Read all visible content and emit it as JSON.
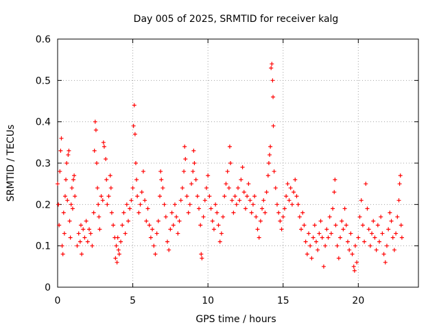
{
  "colors": {
    "points": "#ff0000",
    "background": "#ffffff"
  },
  "chart_data": {
    "type": "scatter",
    "title": "Day 005 of 2025, SRMTID for receiver kalg",
    "xlabel": "GPS time / hours",
    "ylabel": "SRMTID / TECUs",
    "xlim": [
      0,
      24
    ],
    "ylim": [
      0,
      0.6
    ],
    "xticks": [
      0,
      5,
      10,
      15,
      20
    ],
    "xtick_labels": [
      "0",
      "5",
      "10",
      "15",
      "20"
    ],
    "yticks": [
      0,
      0.1,
      0.2,
      0.3,
      0.4,
      0.5,
      0.6
    ],
    "ytick_labels": [
      "0",
      "0.1",
      "0.2",
      "0.3",
      "0.4",
      "0.5",
      "0.6"
    ],
    "grid": true,
    "marker": "plus",
    "series": [
      {
        "name": "SRMTID",
        "points": [
          [
            0.0,
            0.25
          ],
          [
            0.05,
            0.2
          ],
          [
            0.1,
            0.15
          ],
          [
            0.15,
            0.28
          ],
          [
            0.2,
            0.33
          ],
          [
            0.25,
            0.36
          ],
          [
            0.3,
            0.1
          ],
          [
            0.35,
            0.08
          ],
          [
            0.4,
            0.18
          ],
          [
            0.45,
            0.13
          ],
          [
            0.5,
            0.22
          ],
          [
            0.55,
            0.26
          ],
          [
            0.6,
            0.3
          ],
          [
            0.65,
            0.21
          ],
          [
            0.7,
            0.32
          ],
          [
            0.75,
            0.33
          ],
          [
            0.8,
            0.16
          ],
          [
            0.85,
            0.12
          ],
          [
            0.9,
            0.2
          ],
          [
            0.95,
            0.24
          ],
          [
            1.0,
            0.19
          ],
          [
            1.05,
            0.26
          ],
          [
            1.1,
            0.27
          ],
          [
            1.15,
            0.22
          ],
          [
            1.3,
            0.1
          ],
          [
            1.4,
            0.13
          ],
          [
            1.5,
            0.11
          ],
          [
            1.55,
            0.15
          ],
          [
            1.6,
            0.08
          ],
          [
            1.7,
            0.14
          ],
          [
            1.8,
            0.12
          ],
          [
            1.9,
            0.16
          ],
          [
            2.0,
            0.11
          ],
          [
            2.1,
            0.14
          ],
          [
            2.2,
            0.13
          ],
          [
            2.3,
            0.1
          ],
          [
            2.4,
            0.18
          ],
          [
            2.45,
            0.33
          ],
          [
            2.5,
            0.4
          ],
          [
            2.55,
            0.38
          ],
          [
            2.6,
            0.3
          ],
          [
            2.65,
            0.24
          ],
          [
            2.7,
            0.2
          ],
          [
            2.75,
            0.17
          ],
          [
            2.8,
            0.14
          ],
          [
            2.9,
            0.22
          ],
          [
            3.0,
            0.21
          ],
          [
            3.05,
            0.35
          ],
          [
            3.1,
            0.34
          ],
          [
            3.2,
            0.31
          ],
          [
            3.25,
            0.26
          ],
          [
            3.3,
            0.2
          ],
          [
            3.4,
            0.22
          ],
          [
            3.5,
            0.27
          ],
          [
            3.55,
            0.24
          ],
          [
            3.6,
            0.18
          ],
          [
            3.7,
            0.15
          ],
          [
            3.8,
            0.12
          ],
          [
            3.85,
            0.07
          ],
          [
            3.9,
            0.1
          ],
          [
            3.95,
            0.06
          ],
          [
            4.0,
            0.12
          ],
          [
            4.05,
            0.09
          ],
          [
            4.1,
            0.08
          ],
          [
            4.2,
            0.11
          ],
          [
            4.3,
            0.15
          ],
          [
            4.4,
            0.18
          ],
          [
            4.5,
            0.13
          ],
          [
            4.6,
            0.2
          ],
          [
            4.7,
            0.16
          ],
          [
            4.8,
            0.19
          ],
          [
            4.9,
            0.21
          ],
          [
            5.0,
            0.24
          ],
          [
            5.05,
            0.39
          ],
          [
            5.1,
            0.44
          ],
          [
            5.15,
            0.37
          ],
          [
            5.2,
            0.3
          ],
          [
            5.25,
            0.26
          ],
          [
            5.3,
            0.22
          ],
          [
            5.4,
            0.18
          ],
          [
            5.5,
            0.2
          ],
          [
            5.6,
            0.23
          ],
          [
            5.7,
            0.28
          ],
          [
            5.8,
            0.21
          ],
          [
            5.9,
            0.16
          ],
          [
            6.0,
            0.19
          ],
          [
            6.1,
            0.15
          ],
          [
            6.2,
            0.12
          ],
          [
            6.3,
            0.14
          ],
          [
            6.4,
            0.1
          ],
          [
            6.5,
            0.08
          ],
          [
            6.6,
            0.13
          ],
          [
            6.7,
            0.16
          ],
          [
            6.8,
            0.22
          ],
          [
            6.85,
            0.28
          ],
          [
            6.9,
            0.26
          ],
          [
            7.0,
            0.24
          ],
          [
            7.1,
            0.2
          ],
          [
            7.2,
            0.17
          ],
          [
            7.3,
            0.11
          ],
          [
            7.4,
            0.09
          ],
          [
            7.5,
            0.14
          ],
          [
            7.6,
            0.18
          ],
          [
            7.7,
            0.15
          ],
          [
            7.8,
            0.2
          ],
          [
            7.9,
            0.17
          ],
          [
            8.0,
            0.13
          ],
          [
            8.1,
            0.16
          ],
          [
            8.2,
            0.21
          ],
          [
            8.3,
            0.24
          ],
          [
            8.4,
            0.28
          ],
          [
            8.45,
            0.34
          ],
          [
            8.5,
            0.31
          ],
          [
            8.6,
            0.22
          ],
          [
            8.7,
            0.18
          ],
          [
            8.8,
            0.2
          ],
          [
            8.9,
            0.25
          ],
          [
            9.0,
            0.28
          ],
          [
            9.05,
            0.33
          ],
          [
            9.1,
            0.3
          ],
          [
            9.2,
            0.26
          ],
          [
            9.3,
            0.22
          ],
          [
            9.4,
            0.19
          ],
          [
            9.5,
            0.15
          ],
          [
            9.55,
            0.08
          ],
          [
            9.6,
            0.07
          ],
          [
            9.7,
            0.17
          ],
          [
            9.8,
            0.21
          ],
          [
            9.9,
            0.24
          ],
          [
            10.0,
            0.27
          ],
          [
            10.1,
            0.22
          ],
          [
            10.2,
            0.19
          ],
          [
            10.3,
            0.16
          ],
          [
            10.4,
            0.14
          ],
          [
            10.5,
            0.2
          ],
          [
            10.6,
            0.18
          ],
          [
            10.7,
            0.15
          ],
          [
            10.8,
            0.11
          ],
          [
            10.9,
            0.13
          ],
          [
            11.0,
            0.17
          ],
          [
            11.1,
            0.22
          ],
          [
            11.2,
            0.25
          ],
          [
            11.3,
            0.28
          ],
          [
            11.4,
            0.24
          ],
          [
            11.45,
            0.34
          ],
          [
            11.5,
            0.3
          ],
          [
            11.6,
            0.21
          ],
          [
            11.7,
            0.18
          ],
          [
            11.8,
            0.22
          ],
          [
            11.9,
            0.2
          ],
          [
            12.0,
            0.24
          ],
          [
            12.1,
            0.21
          ],
          [
            12.2,
            0.26
          ],
          [
            12.3,
            0.29
          ],
          [
            12.4,
            0.23
          ],
          [
            12.5,
            0.19
          ],
          [
            12.6,
            0.22
          ],
          [
            12.7,
            0.25
          ],
          [
            12.8,
            0.21
          ],
          [
            12.9,
            0.18
          ],
          [
            13.0,
            0.2
          ],
          [
            13.1,
            0.22
          ],
          [
            13.2,
            0.17
          ],
          [
            13.3,
            0.14
          ],
          [
            13.4,
            0.12
          ],
          [
            13.5,
            0.16
          ],
          [
            13.6,
            0.19
          ],
          [
            13.7,
            0.21
          ],
          [
            13.8,
            0.18
          ],
          [
            13.9,
            0.23
          ],
          [
            14.0,
            0.27
          ],
          [
            14.05,
            0.3
          ],
          [
            14.1,
            0.32
          ],
          [
            14.15,
            0.34
          ],
          [
            14.2,
            0.53
          ],
          [
            14.25,
            0.54
          ],
          [
            14.3,
            0.5
          ],
          [
            14.33,
            0.46
          ],
          [
            14.35,
            0.39
          ],
          [
            14.4,
            0.28
          ],
          [
            14.5,
            0.24
          ],
          [
            14.6,
            0.2
          ],
          [
            14.7,
            0.18
          ],
          [
            14.8,
            0.16
          ],
          [
            14.9,
            0.14
          ],
          [
            15.0,
            0.17
          ],
          [
            15.1,
            0.19
          ],
          [
            15.2,
            0.22
          ],
          [
            15.3,
            0.25
          ],
          [
            15.4,
            0.21
          ],
          [
            15.5,
            0.24
          ],
          [
            15.6,
            0.2
          ],
          [
            15.7,
            0.23
          ],
          [
            15.8,
            0.26
          ],
          [
            15.9,
            0.22
          ],
          [
            16.0,
            0.2
          ],
          [
            16.1,
            0.17
          ],
          [
            16.2,
            0.14
          ],
          [
            16.3,
            0.18
          ],
          [
            16.4,
            0.15
          ],
          [
            16.5,
            0.11
          ],
          [
            16.6,
            0.08
          ],
          [
            16.7,
            0.13
          ],
          [
            16.8,
            0.1
          ],
          [
            16.9,
            0.07
          ],
          [
            17.0,
            0.12
          ],
          [
            17.1,
            0.15
          ],
          [
            17.2,
            0.11
          ],
          [
            17.3,
            0.09
          ],
          [
            17.4,
            0.13
          ],
          [
            17.5,
            0.16
          ],
          [
            17.6,
            0.12
          ],
          [
            17.7,
            0.05
          ],
          [
            17.8,
            0.1
          ],
          [
            17.9,
            0.14
          ],
          [
            18.0,
            0.12
          ],
          [
            18.1,
            0.17
          ],
          [
            18.2,
            0.13
          ],
          [
            18.3,
            0.19
          ],
          [
            18.4,
            0.23
          ],
          [
            18.45,
            0.26
          ],
          [
            18.5,
            0.15
          ],
          [
            18.6,
            0.1
          ],
          [
            18.7,
            0.07
          ],
          [
            18.8,
            0.12
          ],
          [
            18.9,
            0.16
          ],
          [
            19.0,
            0.14
          ],
          [
            19.1,
            0.19
          ],
          [
            19.2,
            0.15
          ],
          [
            19.3,
            0.11
          ],
          [
            19.4,
            0.09
          ],
          [
            19.5,
            0.13
          ],
          [
            19.6,
            0.08
          ],
          [
            19.7,
            0.05
          ],
          [
            19.75,
            0.04
          ],
          [
            19.8,
            0.1
          ],
          [
            19.9,
            0.06
          ],
          [
            20.0,
            0.12
          ],
          [
            20.1,
            0.17
          ],
          [
            20.2,
            0.21
          ],
          [
            20.3,
            0.15
          ],
          [
            20.4,
            0.11
          ],
          [
            20.5,
            0.25
          ],
          [
            20.6,
            0.19
          ],
          [
            20.7,
            0.14
          ],
          [
            20.8,
            0.1
          ],
          [
            20.9,
            0.13
          ],
          [
            21.0,
            0.16
          ],
          [
            21.1,
            0.12
          ],
          [
            21.2,
            0.09
          ],
          [
            21.3,
            0.15
          ],
          [
            21.4,
            0.11
          ],
          [
            21.5,
            0.17
          ],
          [
            21.6,
            0.13
          ],
          [
            21.7,
            0.08
          ],
          [
            21.8,
            0.06
          ],
          [
            21.9,
            0.1
          ],
          [
            22.0,
            0.14
          ],
          [
            22.1,
            0.18
          ],
          [
            22.2,
            0.16
          ],
          [
            22.3,
            0.12
          ],
          [
            22.4,
            0.09
          ],
          [
            22.5,
            0.13
          ],
          [
            22.6,
            0.17
          ],
          [
            22.7,
            0.21
          ],
          [
            22.75,
            0.25
          ],
          [
            22.8,
            0.27
          ],
          [
            22.85,
            0.15
          ],
          [
            22.9,
            0.12
          ]
        ]
      }
    ]
  }
}
